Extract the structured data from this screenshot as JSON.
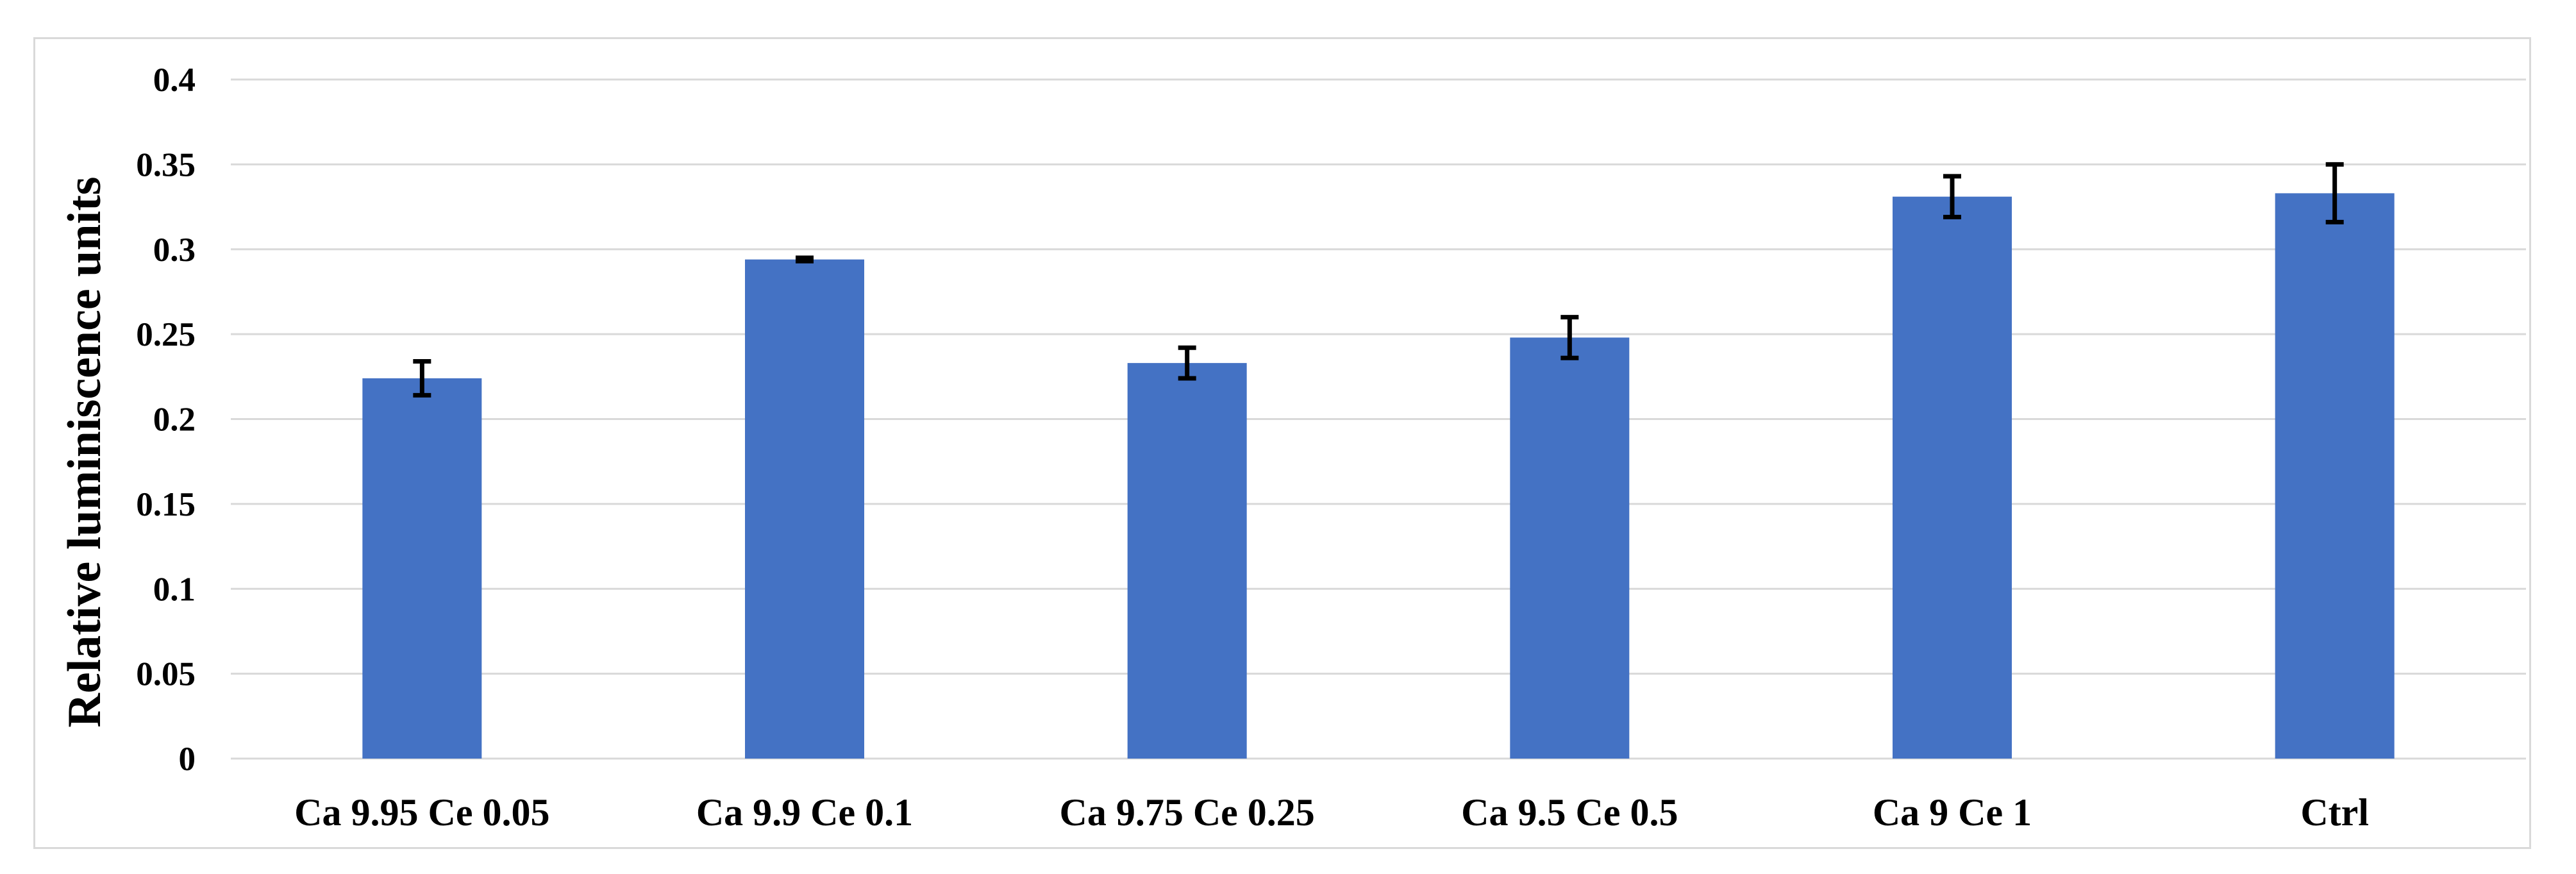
{
  "chart_data": {
    "type": "bar",
    "title": "",
    "xlabel": "",
    "ylabel": "Relative luminiscence units",
    "categories": [
      "Ca 9.95 Ce 0.05",
      "Ca 9.9 Ce 0.1",
      "Ca 9.75 Ce 0.25",
      "Ca 9.5 Ce 0.5",
      "Ca 9 Ce 1",
      "Ctrl"
    ],
    "series": [
      {
        "values": [
          0.224,
          0.294,
          0.233,
          0.248,
          0.331,
          0.333
        ],
        "error": [
          0.01,
          0.001,
          0.009,
          0.012,
          0.012,
          0.017
        ],
        "color": "#4472c4"
      }
    ],
    "ylim": [
      0,
      0.4
    ],
    "yticks": [
      0,
      0.05,
      0.1,
      0.15,
      0.2,
      0.25,
      0.3,
      0.35,
      0.4
    ],
    "ytick_labels": [
      "0",
      "0.05",
      "0.1",
      "0.15",
      "0.2",
      "0.25",
      "0.3",
      "0.35",
      "0.4"
    ],
    "grid": true,
    "legend": "none",
    "gridline_color": "#d9d9d9",
    "error_bar_color": "#000000"
  }
}
